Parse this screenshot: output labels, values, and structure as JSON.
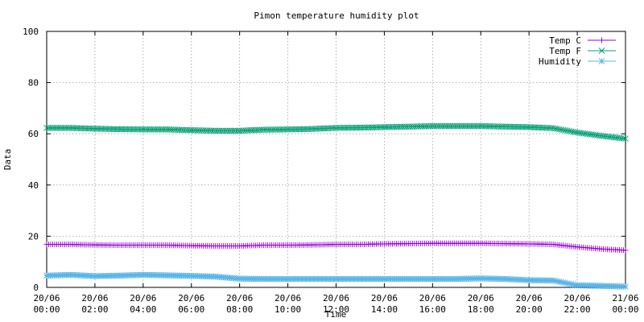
{
  "chart_data": {
    "type": "line",
    "title": "Pimon temperature   humidity plot",
    "xlabel": "Time",
    "ylabel": "Data",
    "ylim": [
      0,
      100
    ],
    "yticks": [
      0,
      20,
      40,
      60,
      80,
      100
    ],
    "xlim": [
      "20/06 00:00",
      "21/06 00:00"
    ],
    "xticks": [
      {
        "date": "20/06",
        "time": "00:00"
      },
      {
        "date": "20/06",
        "time": "02:00"
      },
      {
        "date": "20/06",
        "time": "04:00"
      },
      {
        "date": "20/06",
        "time": "06:00"
      },
      {
        "date": "20/06",
        "time": "08:00"
      },
      {
        "date": "20/06",
        "time": "10:00"
      },
      {
        "date": "20/06",
        "time": "12:00"
      },
      {
        "date": "20/06",
        "time": "14:00"
      },
      {
        "date": "20/06",
        "time": "16:00"
      },
      {
        "date": "20/06",
        "time": "18:00"
      },
      {
        "date": "20/06",
        "time": "20:00"
      },
      {
        "date": "20/06",
        "time": "22:00"
      },
      {
        "date": "21/06",
        "time": "00:00"
      }
    ],
    "grid": true,
    "legend_position": "top-right",
    "x": [
      "20/06 00:00",
      "20/06 01:00",
      "20/06 02:00",
      "20/06 03:00",
      "20/06 04:00",
      "20/06 05:00",
      "20/06 06:00",
      "20/06 07:00",
      "20/06 08:00",
      "20/06 09:00",
      "20/06 10:00",
      "20/06 11:00",
      "20/06 12:00",
      "20/06 13:00",
      "20/06 14:00",
      "20/06 15:00",
      "20/06 16:00",
      "20/06 17:00",
      "20/06 18:00",
      "20/06 19:00",
      "20/06 20:00",
      "20/06 21:00",
      "20/06 22:00",
      "20/06 23:00",
      "21/06 00:00"
    ],
    "series": [
      {
        "name": "Temp C",
        "color": "#9400d3",
        "marker": "plus",
        "values": [
          16.8,
          16.8,
          16.6,
          16.5,
          16.5,
          16.5,
          16.3,
          16.2,
          16.2,
          16.5,
          16.5,
          16.6,
          16.8,
          16.8,
          17.0,
          17.1,
          17.2,
          17.2,
          17.2,
          17.1,
          17.0,
          16.8,
          15.8,
          15.0,
          14.5
        ]
      },
      {
        "name": "Temp F",
        "color": "#009e73",
        "marker": "cross",
        "values": [
          62.3,
          62.3,
          62.0,
          61.8,
          61.7,
          61.7,
          61.4,
          61.2,
          61.2,
          61.6,
          61.7,
          61.9,
          62.3,
          62.4,
          62.6,
          62.8,
          63.0,
          63.0,
          63.0,
          62.8,
          62.6,
          62.2,
          60.5,
          59.2,
          58.1
        ]
      },
      {
        "name": "Humidity",
        "color": "#56b4e9",
        "marker": "star",
        "values": [
          4.6,
          4.9,
          4.4,
          4.6,
          4.9,
          4.7,
          4.5,
          4.2,
          3.4,
          3.3,
          3.3,
          3.3,
          3.3,
          3.3,
          3.3,
          3.3,
          3.3,
          3.3,
          3.5,
          3.3,
          2.8,
          2.7,
          0.8,
          0.6,
          0.3
        ]
      }
    ]
  }
}
